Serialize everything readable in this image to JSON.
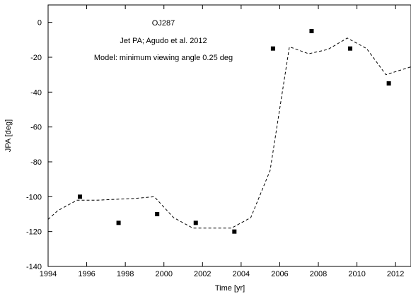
{
  "chart_data": {
    "type": "scatter",
    "title": "",
    "xlabel": "Time [yr]",
    "ylabel": "JPA [deg]",
    "xlim": [
      1994,
      2012.8
    ],
    "ylim": [
      -140,
      10
    ],
    "xticks": [
      "1994",
      "1996",
      "1998",
      "2000",
      "2002",
      "2004",
      "2006",
      "2008",
      "2010",
      "2012"
    ],
    "yticks": [
      "0",
      "-20",
      "-40",
      "-60",
      "-80",
      "-100",
      "-120",
      "-140"
    ],
    "annotations": [
      "OJ287",
      "Jet PA; Agudo et al. 2012",
      "Model: minimum viewing angle 0.25 deg"
    ],
    "grid": false,
    "series": [
      {
        "style": "points",
        "color": "#000000",
        "x": [
          1995.65,
          1997.65,
          1999.65,
          2001.65,
          2003.65,
          2005.65,
          2007.65,
          2009.65,
          2011.65
        ],
        "y": [
          -100,
          -115,
          -110,
          -115,
          -120,
          -15,
          -5,
          -15,
          -35
        ]
      },
      {
        "style": "dashed-line",
        "color": "#000000",
        "x": [
          1994,
          1994.5,
          1995.5,
          1996.5,
          1997.5,
          1998.5,
          1999.5,
          2000.5,
          2001.5,
          2002.5,
          2003.5,
          2004.5,
          2005.5,
          2006.5,
          2007.5,
          2008.5,
          2009.5,
          2010.5,
          2011.5,
          2012.8
        ],
        "y": [
          -113,
          -108,
          -102,
          -102,
          -101.5,
          -101,
          -100,
          -112,
          -118,
          -118,
          -118,
          -112,
          -85,
          -14,
          -18,
          -15.5,
          -9,
          -15,
          -30,
          -25.5
        ]
      }
    ]
  }
}
